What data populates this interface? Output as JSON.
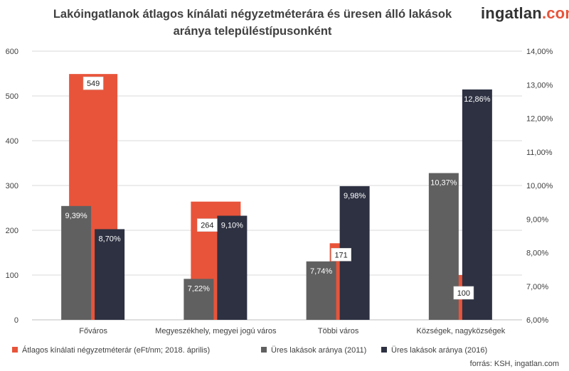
{
  "header": {
    "title_line1": "Lakóingatlanok átlagos kínálati négyzetméterára és üresen álló lakások",
    "title_line2": "aránya településtípusonként",
    "logo_text": "ingatlan",
    "logo_suffix": ".com"
  },
  "source": "forrás: KSH, ingatlan.com",
  "chart_data": {
    "type": "bar",
    "categories": [
      "Főváros",
      "Megyeszékhely, megyei jogú város",
      "Többi város",
      "Községek, nagyközségek"
    ],
    "left_axis": {
      "min": 0,
      "max": 600,
      "step": 100,
      "ticks": [
        "0",
        "100",
        "200",
        "300",
        "400",
        "500",
        "600"
      ]
    },
    "right_axis": {
      "min": 6.0,
      "max": 14.0,
      "step": 1.0,
      "ticks": [
        "6,00%",
        "7,00%",
        "8,00%",
        "9,00%",
        "10,00%",
        "11,00%",
        "12,00%",
        "13,00%",
        "14,00%"
      ]
    },
    "grid": true,
    "legend_position": "bottom",
    "series": [
      {
        "name": "Átlagos kínálati négyzetméterár (eFt/nm; 2018. április)",
        "axis": "left",
        "color": "#e8543a",
        "values": [
          549,
          264,
          171,
          100
        ],
        "labels": [
          "549",
          "264",
          "171",
          "100"
        ]
      },
      {
        "name": "Üres lakások aránya (2011)",
        "axis": "right",
        "color": "#606060",
        "values": [
          9.39,
          7.22,
          7.74,
          10.37
        ],
        "labels": [
          "9,39%",
          "7,22%",
          "7,74%",
          "10,37%"
        ]
      },
      {
        "name": "Üres lakások aránya (2016)",
        "axis": "right",
        "color": "#2d3142",
        "values": [
          8.7,
          9.1,
          9.98,
          12.86
        ],
        "labels": [
          "8,70%",
          "9,10%",
          "9,98%",
          "12,86%"
        ]
      }
    ]
  }
}
